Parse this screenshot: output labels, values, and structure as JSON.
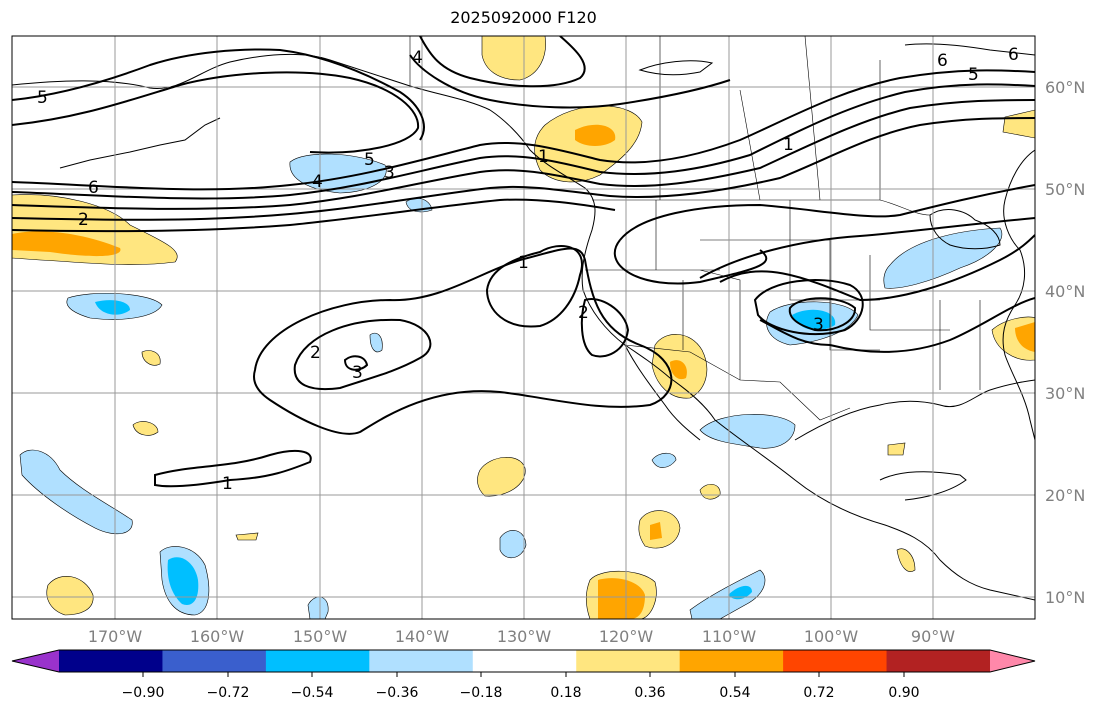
{
  "title": "2025092000 F120",
  "lon_ticks": [
    "170°W",
    "160°W",
    "150°W",
    "140°W",
    "130°W",
    "120°W",
    "110°W",
    "100°W",
    "90°W"
  ],
  "lat_ticks": [
    "60°N",
    "50°N",
    "40°N",
    "30°N",
    "20°N",
    "10°N"
  ],
  "colorbar": {
    "levels": [
      "−0.90",
      "−0.72",
      "−0.54",
      "−0.36",
      "−0.18",
      "0.18",
      "0.36",
      "0.54",
      "0.72",
      "0.90"
    ],
    "colors": [
      "#9932cc",
      "#00008b",
      "#3a5fcd",
      "#00bfff",
      "#b0e0ff",
      "#ffffff",
      "#ffe680",
      "#ffa500",
      "#ff4500",
      "#b22222",
      "#ff88aa"
    ]
  },
  "contour_labels": [
    "6",
    "5",
    "4",
    "5",
    "3",
    "4",
    "6",
    "2",
    "1",
    "1",
    "2",
    "2",
    "3",
    "1",
    "3",
    "6",
    "5",
    "1"
  ],
  "palette": {
    "land_line": "#000000",
    "grid": "#999999",
    "contour": "#000000"
  }
}
